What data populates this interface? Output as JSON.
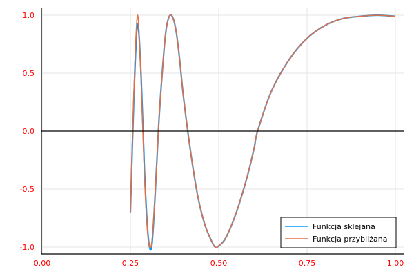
{
  "chart_data": {
    "type": "line",
    "title": "",
    "xlabel": "",
    "ylabel": "",
    "xlim": [
      0.0,
      1.0
    ],
    "ylim": [
      -1.0,
      1.0
    ],
    "grid": true,
    "legend_position": "bottom-right",
    "x_ticks": [
      "0.00",
      "0.25",
      "0.50",
      "0.75",
      "1.00"
    ],
    "y_ticks": [
      "1.0",
      "0.5",
      "0.0",
      "-0.5",
      "-1.0"
    ],
    "x_tick_values": [
      0.0,
      0.25,
      0.5,
      0.75,
      1.0
    ],
    "y_tick_values": [
      1.0,
      0.5,
      0.0,
      -0.5,
      -1.0
    ],
    "tick_label_color": "#ff0000",
    "series": [
      {
        "name": "Funkcja sklejana",
        "color": "#009af9",
        "points": [
          [
            0.25,
            -0.7
          ],
          [
            0.26,
            0.3
          ],
          [
            0.27,
            0.92
          ],
          [
            0.28,
            0.5
          ],
          [
            0.29,
            -0.35
          ],
          [
            0.3,
            -0.9
          ],
          [
            0.31,
            -1.0
          ],
          [
            0.32,
            -0.55
          ],
          [
            0.33,
            0.05
          ],
          [
            0.34,
            0.5
          ],
          [
            0.35,
            0.85
          ],
          [
            0.36,
            0.99
          ],
          [
            0.37,
            0.98
          ],
          [
            0.38,
            0.85
          ],
          [
            0.39,
            0.6
          ],
          [
            0.4,
            0.3
          ],
          [
            0.42,
            -0.17
          ],
          [
            0.44,
            -0.55
          ],
          [
            0.46,
            -0.8
          ],
          [
            0.48,
            -0.95
          ],
          [
            0.49,
            -1.0
          ],
          [
            0.5,
            -0.99
          ],
          [
            0.52,
            -0.92
          ],
          [
            0.55,
            -0.7
          ],
          [
            0.58,
            -0.4
          ],
          [
            0.6,
            -0.15
          ],
          [
            0.61,
            0.0
          ],
          [
            0.65,
            0.35
          ],
          [
            0.7,
            0.62
          ],
          [
            0.75,
            0.8
          ],
          [
            0.8,
            0.91
          ],
          [
            0.85,
            0.97
          ],
          [
            0.9,
            0.99
          ],
          [
            0.95,
            1.0
          ],
          [
            1.0,
            0.99
          ]
        ]
      },
      {
        "name": "Funkcja przybliżana",
        "color": "#e26f46",
        "points": [
          [
            0.25,
            -0.7
          ],
          [
            0.26,
            0.35
          ],
          [
            0.27,
            1.0
          ],
          [
            0.28,
            0.45
          ],
          [
            0.29,
            -0.4
          ],
          [
            0.3,
            -0.92
          ],
          [
            0.31,
            -0.97
          ],
          [
            0.32,
            -0.55
          ],
          [
            0.33,
            0.05
          ],
          [
            0.34,
            0.5
          ],
          [
            0.35,
            0.85
          ],
          [
            0.36,
            0.99
          ],
          [
            0.37,
            0.98
          ],
          [
            0.38,
            0.85
          ],
          [
            0.39,
            0.6
          ],
          [
            0.4,
            0.3
          ],
          [
            0.42,
            -0.17
          ],
          [
            0.44,
            -0.55
          ],
          [
            0.46,
            -0.8
          ],
          [
            0.48,
            -0.95
          ],
          [
            0.49,
            -1.0
          ],
          [
            0.5,
            -0.99
          ],
          [
            0.52,
            -0.92
          ],
          [
            0.55,
            -0.7
          ],
          [
            0.58,
            -0.4
          ],
          [
            0.6,
            -0.15
          ],
          [
            0.61,
            0.0
          ],
          [
            0.65,
            0.35
          ],
          [
            0.7,
            0.62
          ],
          [
            0.75,
            0.8
          ],
          [
            0.8,
            0.91
          ],
          [
            0.85,
            0.97
          ],
          [
            0.9,
            0.99
          ],
          [
            0.95,
            1.0
          ],
          [
            1.0,
            0.99
          ]
        ]
      }
    ]
  }
}
